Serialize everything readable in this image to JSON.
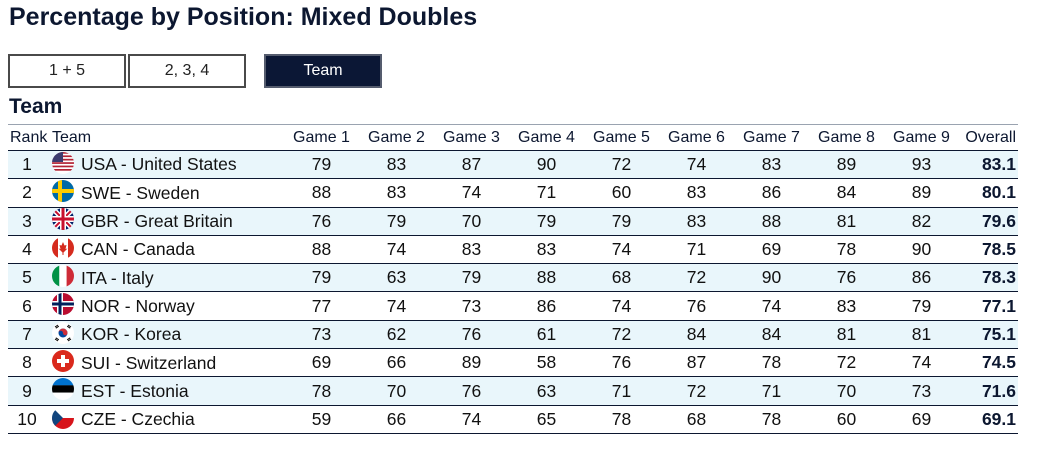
{
  "title": "Percentage by Position: Mixed Doubles",
  "buttons": [
    {
      "label": "1 + 5",
      "active": false
    },
    {
      "label": "2, 3, 4",
      "active": false
    },
    {
      "label": "Team",
      "active": true
    }
  ],
  "section_title": "Team",
  "columns": [
    "Rank",
    "Team",
    "Game 1",
    "Game 2",
    "Game 3",
    "Game 4",
    "Game 5",
    "Game 6",
    "Game 7",
    "Game 8",
    "Game 9",
    "Overall"
  ],
  "rows": [
    {
      "rank": "1",
      "team": "USA - United States",
      "flag": "usa-flag-icon",
      "games": [
        "79",
        "83",
        "87",
        "90",
        "72",
        "74",
        "83",
        "89",
        "93"
      ],
      "overall": "83.1"
    },
    {
      "rank": "2",
      "team": "SWE - Sweden",
      "flag": "swe-flag-icon",
      "games": [
        "88",
        "83",
        "74",
        "71",
        "60",
        "83",
        "86",
        "84",
        "89"
      ],
      "overall": "80.1"
    },
    {
      "rank": "3",
      "team": "GBR - Great Britain",
      "flag": "gbr-flag-icon",
      "games": [
        "76",
        "79",
        "70",
        "79",
        "79",
        "83",
        "88",
        "81",
        "82"
      ],
      "overall": "79.6"
    },
    {
      "rank": "4",
      "team": "CAN - Canada",
      "flag": "can-flag-icon",
      "games": [
        "88",
        "74",
        "83",
        "83",
        "74",
        "71",
        "69",
        "78",
        "90"
      ],
      "overall": "78.5"
    },
    {
      "rank": "5",
      "team": "ITA - Italy",
      "flag": "ita-flag-icon",
      "games": [
        "79",
        "63",
        "79",
        "88",
        "68",
        "72",
        "90",
        "76",
        "86"
      ],
      "overall": "78.3"
    },
    {
      "rank": "6",
      "team": "NOR - Norway",
      "flag": "nor-flag-icon",
      "games": [
        "77",
        "74",
        "73",
        "86",
        "74",
        "76",
        "74",
        "83",
        "79"
      ],
      "overall": "77.1"
    },
    {
      "rank": "7",
      "team": "KOR - Korea",
      "flag": "kor-flag-icon",
      "games": [
        "73",
        "62",
        "76",
        "61",
        "72",
        "84",
        "84",
        "81",
        "81"
      ],
      "overall": "75.1"
    },
    {
      "rank": "8",
      "team": "SUI - Switzerland",
      "flag": "sui-flag-icon",
      "games": [
        "69",
        "66",
        "89",
        "58",
        "76",
        "87",
        "78",
        "72",
        "74"
      ],
      "overall": "74.5"
    },
    {
      "rank": "9",
      "team": "EST - Estonia",
      "flag": "est-flag-icon",
      "games": [
        "78",
        "70",
        "76",
        "63",
        "71",
        "72",
        "71",
        "70",
        "73"
      ],
      "overall": "71.6"
    },
    {
      "rank": "10",
      "team": "CZE - Czechia",
      "flag": "cze-flag-icon",
      "games": [
        "59",
        "66",
        "74",
        "65",
        "78",
        "68",
        "78",
        "60",
        "69"
      ],
      "overall": "69.1"
    }
  ]
}
